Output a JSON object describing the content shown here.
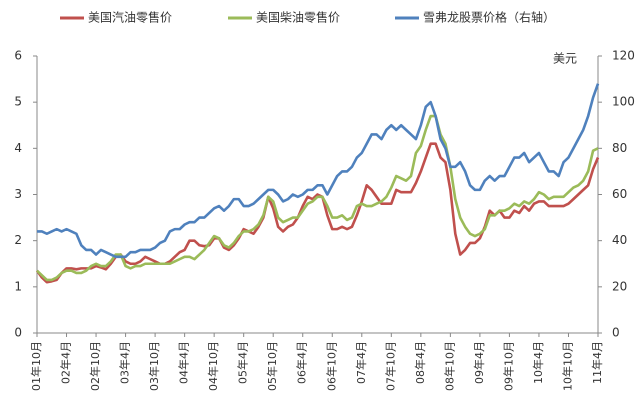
{
  "chart_data": {
    "type": "line",
    "y2_label": "美元",
    "categories": [
      "01年10月",
      null,
      null,
      null,
      null,
      null,
      "02年4月",
      null,
      null,
      null,
      null,
      null,
      "02年10月",
      null,
      null,
      null,
      null,
      null,
      "03年4月",
      null,
      null,
      null,
      null,
      null,
      "03年10月",
      null,
      null,
      null,
      null,
      null,
      "04年4月",
      null,
      null,
      null,
      null,
      null,
      "04年10月",
      null,
      null,
      null,
      null,
      null,
      "05年4月",
      null,
      null,
      null,
      null,
      null,
      "05年10月",
      null,
      null,
      null,
      null,
      null,
      "06年4月",
      null,
      null,
      null,
      null,
      null,
      "06年10月",
      null,
      null,
      null,
      null,
      null,
      "07年4月",
      null,
      null,
      null,
      null,
      null,
      "07年10月",
      null,
      null,
      null,
      null,
      null,
      "08年4月",
      null,
      null,
      null,
      null,
      null,
      "08年10月",
      null,
      null,
      null,
      null,
      null,
      "09年4月",
      null,
      null,
      null,
      null,
      null,
      "09年10月",
      null,
      null,
      null,
      null,
      null,
      "10年4月",
      null,
      null,
      null,
      null,
      null,
      "10年10月",
      null,
      null,
      null,
      null,
      null,
      "11年4月"
    ],
    "series": [
      {
        "name": "美国汽油零售价",
        "color": "#c0504d",
        "axis": "y",
        "values": [
          1.35,
          1.2,
          1.1,
          1.12,
          1.15,
          1.3,
          1.4,
          1.4,
          1.38,
          1.4,
          1.4,
          1.4,
          1.45,
          1.42,
          1.38,
          1.5,
          1.65,
          1.7,
          1.55,
          1.5,
          1.5,
          1.55,
          1.65,
          1.6,
          1.55,
          1.5,
          1.5,
          1.55,
          1.65,
          1.75,
          1.8,
          2.0,
          2.0,
          1.9,
          1.88,
          1.9,
          2.05,
          2.05,
          1.85,
          1.8,
          1.9,
          2.05,
          2.25,
          2.2,
          2.15,
          2.3,
          2.5,
          2.95,
          2.7,
          2.3,
          2.2,
          2.3,
          2.35,
          2.5,
          2.75,
          2.95,
          2.9,
          3.0,
          2.95,
          2.55,
          2.25,
          2.25,
          2.3,
          2.25,
          2.3,
          2.55,
          2.85,
          3.2,
          3.1,
          2.95,
          2.8,
          2.8,
          2.8,
          3.1,
          3.05,
          3.05,
          3.05,
          3.25,
          3.5,
          3.8,
          4.1,
          4.1,
          3.8,
          3.7,
          3.1,
          2.15,
          1.7,
          1.8,
          1.95,
          1.95,
          2.05,
          2.3,
          2.65,
          2.55,
          2.65,
          2.5,
          2.5,
          2.65,
          2.6,
          2.75,
          2.65,
          2.8,
          2.85,
          2.85,
          2.75,
          2.75,
          2.75,
          2.75,
          2.8,
          2.9,
          3.0,
          3.1,
          3.2,
          3.55,
          3.8
        ]
      },
      {
        "name": "美国柴油零售价",
        "color": "#9bbb59",
        "axis": "y",
        "values": [
          1.35,
          1.25,
          1.15,
          1.15,
          1.2,
          1.3,
          1.35,
          1.35,
          1.3,
          1.3,
          1.35,
          1.45,
          1.5,
          1.45,
          1.45,
          1.55,
          1.7,
          1.7,
          1.45,
          1.4,
          1.45,
          1.45,
          1.5,
          1.5,
          1.5,
          1.5,
          1.5,
          1.5,
          1.55,
          1.6,
          1.65,
          1.65,
          1.6,
          1.7,
          1.8,
          1.95,
          2.1,
          2.05,
          1.9,
          1.85,
          1.95,
          2.1,
          2.2,
          2.2,
          2.25,
          2.35,
          2.55,
          2.95,
          2.85,
          2.5,
          2.4,
          2.45,
          2.5,
          2.5,
          2.65,
          2.8,
          2.85,
          2.95,
          2.95,
          2.75,
          2.5,
          2.5,
          2.55,
          2.45,
          2.5,
          2.75,
          2.8,
          2.75,
          2.75,
          2.8,
          2.85,
          2.95,
          3.15,
          3.4,
          3.35,
          3.3,
          3.4,
          3.9,
          4.05,
          4.4,
          4.7,
          4.7,
          4.3,
          4.1,
          3.6,
          2.9,
          2.5,
          2.3,
          2.15,
          2.1,
          2.15,
          2.25,
          2.55,
          2.55,
          2.65,
          2.65,
          2.7,
          2.8,
          2.75,
          2.85,
          2.8,
          2.9,
          3.05,
          3.0,
          2.9,
          2.95,
          2.95,
          2.95,
          3.05,
          3.15,
          3.2,
          3.3,
          3.5,
          3.95,
          4.0
        ]
      },
      {
        "name": "雪弗龙股票价格（右轴）",
        "color": "#4f81bd",
        "axis": "y2",
        "values": [
          44,
          44,
          43,
          44,
          45,
          44,
          45,
          44,
          43,
          38,
          36,
          36,
          34,
          36,
          35,
          34,
          33,
          33,
          33,
          35,
          35,
          36,
          36,
          36,
          37,
          39,
          40,
          44,
          45,
          45,
          47,
          48,
          48,
          50,
          50,
          52,
          54,
          55,
          53,
          55,
          58,
          58,
          55,
          55,
          56,
          58,
          60,
          62,
          62,
          60,
          57,
          58,
          60,
          59,
          60,
          62,
          62,
          64,
          64,
          60,
          64,
          68,
          70,
          70,
          72,
          76,
          78,
          82,
          86,
          86,
          84,
          88,
          90,
          88,
          90,
          88,
          86,
          84,
          90,
          98,
          100,
          94,
          84,
          80,
          72,
          72,
          74,
          70,
          64,
          62,
          62,
          66,
          68,
          66,
          68,
          68,
          72,
          76,
          76,
          78,
          74,
          76,
          78,
          74,
          70,
          70,
          68,
          74,
          76,
          80,
          84,
          88,
          94,
          102,
          108
        ]
      }
    ],
    "ylim": [
      0,
      6
    ],
    "yticks": [
      0,
      1,
      2,
      3,
      4,
      5,
      6
    ],
    "y2lim": [
      0,
      120
    ],
    "y2ticks": [
      0,
      20,
      40,
      60,
      80,
      100,
      120
    ],
    "grid": false
  }
}
